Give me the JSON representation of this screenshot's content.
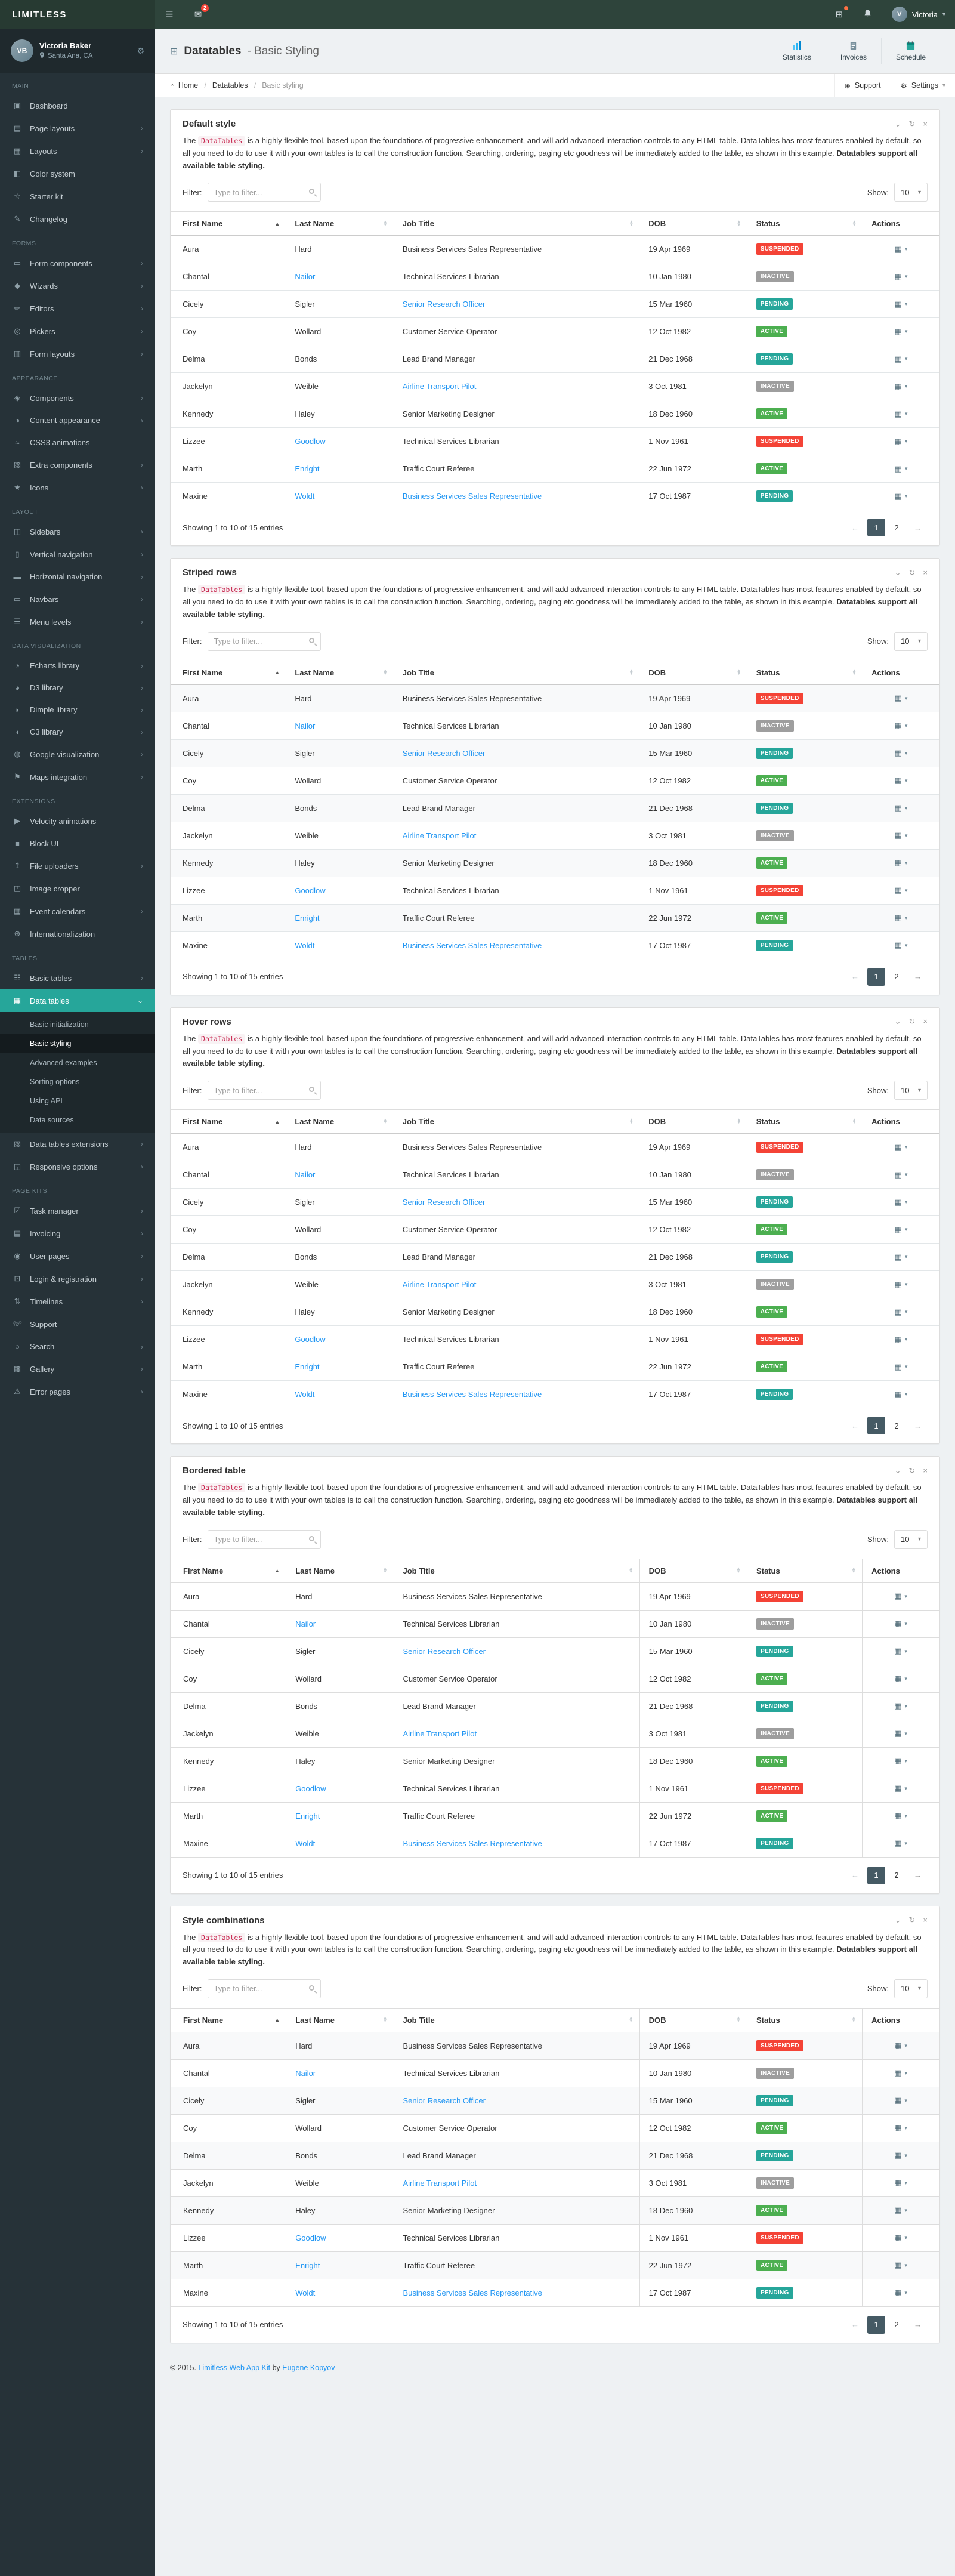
{
  "colors": {
    "accent": "#26A69A",
    "link": "#2196F3",
    "status_suspended": "#F44336",
    "status_active": "#4CAF50",
    "status_pending": "#26A69A",
    "status_inactive": "#9E9E9E",
    "sidebar_bg": "#263238",
    "navbar_bg": "#2E443B",
    "pagination_active": "#455A64"
  },
  "icons": {
    "hamburger": "☰",
    "envelope": "✉",
    "grid": "⊞",
    "caret_down": "▾",
    "chevron_right": "›",
    "chevron_down": "⌄",
    "reload": "↻",
    "close": "×",
    "home": "⌂",
    "gear": "⚙",
    "support": "⊕",
    "menu": "▦",
    "sort_asc": "▲",
    "sort_desc": "▼"
  },
  "navbar": {
    "brand": "LIMITLESS",
    "messages_badge": "2",
    "user_name": "Victoria",
    "user_initial": "V"
  },
  "sidebar": {
    "user": {
      "name": "Victoria Baker",
      "location": "Santa Ana, CA",
      "initials": "VB"
    },
    "sections": [
      {
        "label": "Main",
        "items": [
          {
            "label": "Dashboard",
            "icon": "▣"
          },
          {
            "label": "Page layouts",
            "icon": "▤",
            "arrow": true
          },
          {
            "label": "Layouts",
            "icon": "▦",
            "arrow": true
          },
          {
            "label": "Color system",
            "icon": "◧"
          },
          {
            "label": "Starter kit",
            "icon": "☆"
          },
          {
            "label": "Changelog",
            "icon": "✎"
          }
        ]
      },
      {
        "label": "Forms",
        "items": [
          {
            "label": "Form components",
            "icon": "▭",
            "arrow": true
          },
          {
            "label": "Wizards",
            "icon": "◆",
            "arrow": true
          },
          {
            "label": "Editors",
            "icon": "✏",
            "arrow": true
          },
          {
            "label": "Pickers",
            "icon": "◎",
            "arrow": true
          },
          {
            "label": "Form layouts",
            "icon": "▥",
            "arrow": true
          }
        ]
      },
      {
        "label": "Appearance",
        "items": [
          {
            "label": "Components",
            "icon": "◈",
            "arrow": true
          },
          {
            "label": "Content appearance",
            "icon": "◑",
            "arrow": true
          },
          {
            "label": "CSS3 animations",
            "icon": "≈"
          },
          {
            "label": "Extra components",
            "icon": "▧",
            "arrow": true
          },
          {
            "label": "Icons",
            "icon": "★",
            "arrow": true
          }
        ]
      },
      {
        "label": "Layout",
        "items": [
          {
            "label": "Sidebars",
            "icon": "◫",
            "arrow": true
          },
          {
            "label": "Vertical navigation",
            "icon": "▯",
            "arrow": true
          },
          {
            "label": "Horizontal navigation",
            "icon": "▬",
            "arrow": true
          },
          {
            "label": "Navbars",
            "icon": "▭",
            "arrow": true
          },
          {
            "label": "Menu levels",
            "icon": "☰",
            "arrow": true
          }
        ]
      },
      {
        "label": "Data visualization",
        "items": [
          {
            "label": "Echarts library",
            "icon": "◔",
            "arrow": true
          },
          {
            "label": "D3 library",
            "icon": "◕",
            "arrow": true
          },
          {
            "label": "Dimple library",
            "icon": "◗",
            "arrow": true
          },
          {
            "label": "C3 library",
            "icon": "◖",
            "arrow": true
          },
          {
            "label": "Google visualization",
            "icon": "◍",
            "arrow": true
          },
          {
            "label": "Maps integration",
            "icon": "⚑",
            "arrow": true
          }
        ]
      },
      {
        "label": "Extensions",
        "items": [
          {
            "label": "Velocity animations",
            "icon": "▶"
          },
          {
            "label": "Block UI",
            "icon": "■"
          },
          {
            "label": "File uploaders",
            "icon": "↥",
            "arrow": true
          },
          {
            "label": "Image cropper",
            "icon": "◳"
          },
          {
            "label": "Event calendars",
            "icon": "▦",
            "arrow": true
          },
          {
            "label": "Internationalization",
            "icon": "⊕"
          }
        ]
      },
      {
        "label": "Tables",
        "items": [
          {
            "label": "Basic tables",
            "icon": "☷",
            "arrow": true
          },
          {
            "label": "Data tables",
            "icon": "▦",
            "active": true,
            "open": true,
            "children": [
              {
                "label": "Basic initialization"
              },
              {
                "label": "Basic styling",
                "active": true
              },
              {
                "label": "Advanced examples"
              },
              {
                "label": "Sorting options"
              },
              {
                "label": "Using API"
              },
              {
                "label": "Data sources"
              }
            ]
          },
          {
            "label": "Data tables extensions",
            "icon": "▧",
            "arrow": true
          },
          {
            "label": "Responsive options",
            "icon": "◱",
            "arrow": true
          }
        ]
      },
      {
        "label": "Page kits",
        "items": [
          {
            "label": "Task manager",
            "icon": "☑",
            "arrow": true
          },
          {
            "label": "Invoicing",
            "icon": "▤",
            "arrow": true
          },
          {
            "label": "User pages",
            "icon": "◉",
            "arrow": true
          },
          {
            "label": "Login & registration",
            "icon": "⊡",
            "arrow": true
          },
          {
            "label": "Timelines",
            "icon": "⇅",
            "arrow": true
          },
          {
            "label": "Support",
            "icon": "☏"
          },
          {
            "label": "Search",
            "icon": "○",
            "arrow": true
          },
          {
            "label": "Gallery",
            "icon": "▩",
            "arrow": true
          },
          {
            "label": "Error pages",
            "icon": "⚠",
            "arrow": true
          }
        ]
      }
    ]
  },
  "page_header": {
    "title_bold": "Datatables",
    "title_light": "- Basic Styling",
    "links": [
      {
        "label": "Statistics",
        "icon": "stats"
      },
      {
        "label": "Invoices",
        "icon": "invoice"
      },
      {
        "label": "Schedule",
        "icon": "schedule"
      }
    ]
  },
  "breadcrumb": {
    "separator": "/",
    "items": [
      {
        "label": "Home",
        "home": true
      },
      {
        "label": "Datatables"
      },
      {
        "label": "Basic styling",
        "active": true
      }
    ],
    "support_label": "Support",
    "settings_label": "Settings"
  },
  "panels": [
    {
      "title": "Default style",
      "style": "default"
    },
    {
      "title": "Striped rows",
      "style": "striped"
    },
    {
      "title": "Hover rows",
      "style": "hover"
    },
    {
      "title": "Bordered table",
      "style": "bordered"
    },
    {
      "title": "Style combinations",
      "style": "combo"
    }
  ],
  "description": {
    "pre": "The ",
    "code": "DataTables",
    "text": " is a highly flexible tool, based upon the foundations of progressive enhancement, and will add advanced interaction controls to any HTML table. DataTables has most features enabled by default, so all you need to do to use it with your own tables is to call the construction function. Searching, ordering, paging etc goodness will be immediately added to the table, as shown in this example. ",
    "bold": "Datatables support all available table styling."
  },
  "table": {
    "filter_label": "Filter:",
    "filter_placeholder": "Type to filter...",
    "show_label": "Show:",
    "page_length": "10",
    "columns": [
      {
        "label": "First Name",
        "sort": "asc"
      },
      {
        "label": "Last Name",
        "sort": "both"
      },
      {
        "label": "Job Title",
        "sort": "both"
      },
      {
        "label": "DOB",
        "sort": "both"
      },
      {
        "label": "Status",
        "sort": "both"
      },
      {
        "label": "Actions",
        "sort": "none"
      }
    ],
    "rows": [
      {
        "first": "Aura",
        "last": "Hard",
        "job": "Business Services Sales Representative",
        "dob": "19 Apr 1969",
        "status": "Suspended",
        "status_type": "danger"
      },
      {
        "first": "Chantal",
        "last": "Nailor",
        "last_link": true,
        "job": "Technical Services Librarian",
        "dob": "10 Jan 1980",
        "status": "Inactive",
        "status_type": "default"
      },
      {
        "first": "Cicely",
        "last": "Sigler",
        "job": "Senior Research Officer",
        "job_link": true,
        "dob": "15 Mar 1960",
        "status": "Pending",
        "status_type": "teal"
      },
      {
        "first": "Coy",
        "last": "Wollard",
        "job": "Customer Service Operator",
        "dob": "12 Oct 1982",
        "status": "Active",
        "status_type": "success"
      },
      {
        "first": "Delma",
        "last": "Bonds",
        "job": "Lead Brand Manager",
        "dob": "21 Dec 1968",
        "status": "Pending",
        "status_type": "teal"
      },
      {
        "first": "Jackelyn",
        "last": "Weible",
        "job": "Airline Transport Pilot",
        "job_link": true,
        "dob": "3 Oct 1981",
        "status": "Inactive",
        "status_type": "default"
      },
      {
        "first": "Kennedy",
        "last": "Haley",
        "job": "Senior Marketing Designer",
        "dob": "18 Dec 1960",
        "status": "Active",
        "status_type": "success"
      },
      {
        "first": "Lizzee",
        "last": "Goodlow",
        "last_link": true,
        "job": "Technical Services Librarian",
        "dob": "1 Nov 1961",
        "status": "Suspended",
        "status_type": "danger"
      },
      {
        "first": "Marth",
        "last": "Enright",
        "last_link": true,
        "job": "Traffic Court Referee",
        "dob": "22 Jun 1972",
        "status": "Active",
        "status_type": "success"
      },
      {
        "first": "Maxine",
        "last": "Woldt",
        "last_link": true,
        "job": "Business Services Sales Representative",
        "job_link": true,
        "dob": "17 Oct 1987",
        "status": "Pending",
        "status_type": "teal"
      }
    ],
    "info": "Showing 1 to 10 of 15 entries",
    "paging": {
      "prev": "←",
      "pages": [
        "1",
        "2"
      ],
      "active_page": "1",
      "next": "→"
    }
  },
  "footer": {
    "prefix": "© 2015. ",
    "link_theme": "Limitless Web App Kit",
    "middle": " by ",
    "link_author": "Eugene Kopyov"
  }
}
